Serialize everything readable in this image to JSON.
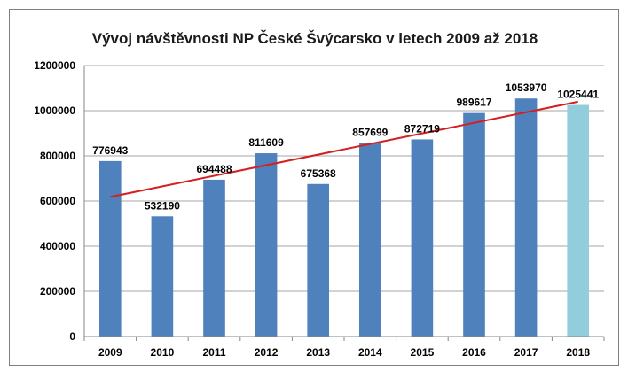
{
  "chart_data": {
    "type": "bar",
    "title": "Vývoj návštěvnosti NP České Švýcarsko v letech 2009 až 2018",
    "xlabel": "",
    "ylabel": "",
    "categories": [
      "2009",
      "2010",
      "2011",
      "2012",
      "2013",
      "2014",
      "2015",
      "2016",
      "2017",
      "2018"
    ],
    "values": [
      776943,
      532190,
      694488,
      811609,
      675368,
      857699,
      872719,
      989617,
      1053970,
      1025441
    ],
    "data_labels": [
      "776943",
      "532190",
      "694488",
      "811609",
      "675368",
      "857699",
      "872719",
      "989617",
      "1053970",
      "1025441"
    ],
    "ylim": [
      0,
      1200000
    ],
    "yticks": [
      0,
      200000,
      400000,
      600000,
      800000,
      1000000,
      1200000
    ],
    "ytick_labels": [
      "0",
      "200000",
      "400000",
      "600000",
      "800000",
      "1000000",
      "1200000"
    ],
    "grid": true,
    "legend": "none",
    "trendline": {
      "type": "linear",
      "color": "#d42020"
    },
    "colors": {
      "bar": "#4f81bd",
      "highlight_bar": "#92cddc",
      "highlight_category": "2018",
      "grid": "#a6a6a6",
      "frame": "#7f7f7f"
    }
  }
}
